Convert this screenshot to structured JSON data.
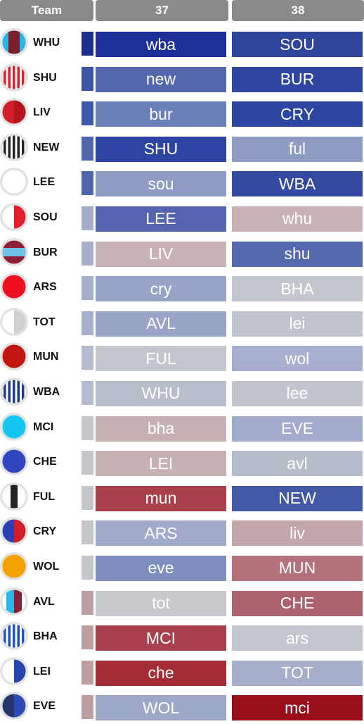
{
  "header": {
    "team": "Team",
    "gw1": "37",
    "gw2": "38"
  },
  "rows": [
    {
      "team": "WHU",
      "kit": {
        "type": "hoops2",
        "c1": "#7a1f2b",
        "c2": "#29b8e6"
      },
      "strength": "#1a2f8c",
      "f37": {
        "label": "wba",
        "color": "#1f2f9a"
      },
      "f38": {
        "label": "SOU",
        "color": "#2e459e"
      }
    },
    {
      "team": "SHU",
      "kit": {
        "type": "stripes",
        "c1": "#e01b2a",
        "c2": "#ffffff"
      },
      "strength": "#3b56a8",
      "f37": {
        "label": "new",
        "color": "#5466ad"
      },
      "f38": {
        "label": "BUR",
        "color": "#2f46a0"
      }
    },
    {
      "team": "LIV",
      "kit": {
        "type": "half",
        "c1": "#d01f26",
        "c2": "#b5121b"
      },
      "strength": "#3d5aaa",
      "f37": {
        "label": "bur",
        "color": "#6b7fb8"
      },
      "f38": {
        "label": "CRY",
        "color": "#2c46a2"
      }
    },
    {
      "team": "NEW",
      "kit": {
        "type": "stripes",
        "c1": "#222222",
        "c2": "#ffffff"
      },
      "strength": "#4e66ae",
      "f37": {
        "label": "SHU",
        "color": "#2d44a2"
      },
      "f38": {
        "label": "ful",
        "color": "#8e9cc3"
      }
    },
    {
      "team": "LEE",
      "kit": {
        "type": "solid",
        "c1": "#ffffff",
        "c2": "#ffffff"
      },
      "strength": "#4d65ad",
      "f37": {
        "label": "sou",
        "color": "#8e9cc3"
      },
      "f38": {
        "label": "WBA",
        "color": "#3349a2"
      }
    },
    {
      "team": "SOU",
      "kit": {
        "type": "half",
        "c1": "#ffffff",
        "c2": "#e51d2d"
      },
      "strength": "#a3acca",
      "f37": {
        "label": "LEE",
        "color": "#5464ae"
      },
      "f38": {
        "label": "whu",
        "color": "#c9b2b5"
      }
    },
    {
      "team": "BUR",
      "kit": {
        "type": "band",
        "c1": "#8e1d36",
        "c2": "#6cc3e6"
      },
      "strength": "#a5aecb",
      "f37": {
        "label": "LIV",
        "color": "#c9b2b5"
      },
      "f38": {
        "label": "shu",
        "color": "#5769ae"
      }
    },
    {
      "team": "ARS",
      "kit": {
        "type": "solid",
        "c1": "#ef0f1f",
        "c2": "#ef0f1f"
      },
      "strength": "#a5aecb",
      "f37": {
        "label": "cry",
        "color": "#98a3c7"
      },
      "f38": {
        "label": "BHA",
        "color": "#c3c6cd"
      }
    },
    {
      "team": "TOT",
      "kit": {
        "type": "half",
        "c1": "#ffffff",
        "c2": "#d0d0d0"
      },
      "strength": "#a7b0cb",
      "f37": {
        "label": "AVL",
        "color": "#9aa4c7"
      },
      "f38": {
        "label": "lei",
        "color": "#c1c4cc"
      }
    },
    {
      "team": "MUN",
      "kit": {
        "type": "solid",
        "c1": "#c0160f",
        "c2": "#c0160f"
      },
      "strength": "#b5bccf",
      "f37": {
        "label": "FUL",
        "color": "#c3c6cd"
      },
      "f38": {
        "label": "wol",
        "color": "#a7aece"
      }
    },
    {
      "team": "WBA",
      "kit": {
        "type": "stripes",
        "c1": "#1d3a8c",
        "c2": "#ffffff"
      },
      "strength": "#b5bccf",
      "f37": {
        "label": "WHU",
        "color": "#b7bdca"
      },
      "f38": {
        "label": "lee",
        "color": "#c1c4cc"
      }
    },
    {
      "team": "MCI",
      "kit": {
        "type": "solid",
        "c1": "#15c6f1",
        "c2": "#15c6f1"
      },
      "strength": "#c4c6cc",
      "f37": {
        "label": "bha",
        "color": "#c8b1b3"
      },
      "f38": {
        "label": "EVE",
        "color": "#a2abcb"
      }
    },
    {
      "team": "CHE",
      "kit": {
        "type": "solid",
        "c1": "#3147c2",
        "c2": "#3147c2"
      },
      "strength": "#c4c6cc",
      "f37": {
        "label": "LEI",
        "color": "#c8b1b3"
      },
      "f38": {
        "label": "avl",
        "color": "#b7bcca"
      }
    },
    {
      "team": "FUL",
      "kit": {
        "type": "third",
        "c1": "#ffffff",
        "c2": "#222222"
      },
      "strength": "#c4c6cc",
      "f37": {
        "label": "mun",
        "color": "#a8404c"
      },
      "f38": {
        "label": "NEW",
        "color": "#4458a8"
      }
    },
    {
      "team": "CRY",
      "kit": {
        "type": "half",
        "c1": "#2b3fb6",
        "c2": "#d51c2b"
      },
      "strength": "#c4c6cc",
      "f37": {
        "label": "ARS",
        "color": "#a2aacb"
      },
      "f38": {
        "label": "liv",
        "color": "#c2a6aa"
      }
    },
    {
      "team": "WOL",
      "kit": {
        "type": "solid",
        "c1": "#f6a300",
        "c2": "#f6a300"
      },
      "strength": "#c4c6cc",
      "f37": {
        "label": "eve",
        "color": "#7d8ebe"
      },
      "f38": {
        "label": "MUN",
        "color": "#b4727c"
      }
    },
    {
      "team": "AVL",
      "kit": {
        "type": "halfsmall",
        "c1": "#29b7e6",
        "c2": "#8a1d38"
      },
      "strength": "#bf9ea2",
      "f37": {
        "label": "tot",
        "color": "#c6c8ce"
      },
      "f38": {
        "label": "CHE",
        "color": "#ac636d"
      }
    },
    {
      "team": "BHA",
      "kit": {
        "type": "stripes",
        "c1": "#1e4fc0",
        "c2": "#ffffff"
      },
      "strength": "#bf9ea2",
      "f37": {
        "label": "MCI",
        "color": "#a8404d"
      },
      "f38": {
        "label": "ars",
        "color": "#c4c6cd"
      }
    },
    {
      "team": "LEI",
      "kit": {
        "type": "half",
        "c1": "#ffffff",
        "c2": "#2645ad"
      },
      "strength": "#bf9ea2",
      "f37": {
        "label": "che",
        "color": "#a32c36"
      },
      "f38": {
        "label": "TOT",
        "color": "#a7aecb"
      }
    },
    {
      "team": "EVE",
      "kit": {
        "type": "half",
        "c1": "#27366c",
        "c2": "#2e4ab5"
      },
      "strength": "#bf9ea2",
      "f37": {
        "label": "WOL",
        "color": "#9da7c8"
      },
      "f38": {
        "label": "mci",
        "color": "#960f1b"
      }
    }
  ]
}
